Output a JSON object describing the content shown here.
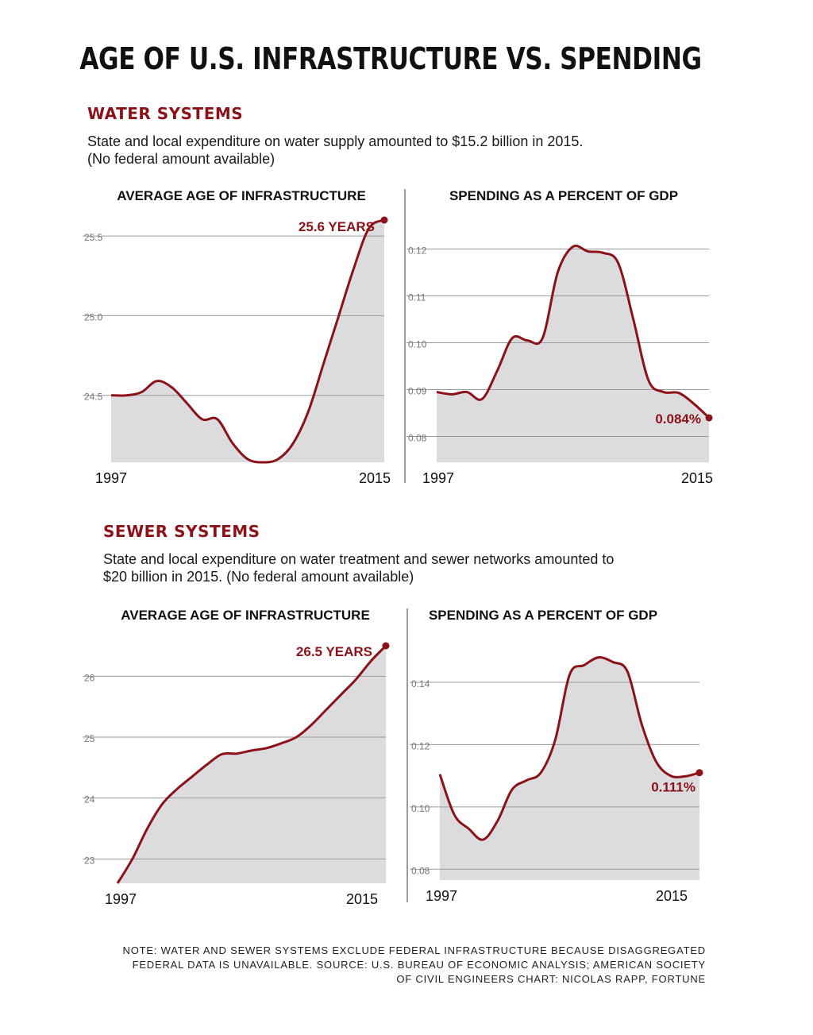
{
  "title": "AGE OF U.S. INFRASTRUCTURE VS. SPENDING",
  "colors": {
    "accent": "#8b1218",
    "area": "#dcdcde",
    "grid": "#9a9a9a",
    "tick": "#777777"
  },
  "water": {
    "heading": "WATER SYSTEMS",
    "desc_line1": "State and local expenditure on water supply amounted to $15.2 billion in 2015.",
    "desc_line2": "(No federal amount available)"
  },
  "sewer": {
    "heading": "SEWER SYSTEMS",
    "desc_line1": "State and local expenditure on water treatment and sewer networks amounted to",
    "desc_line2": "$20 billion in 2015.  (No federal amount available)"
  },
  "note": {
    "line1": "NOTE: WATER AND SEWER SYSTEMS EXCLUDE FEDERAL INFRASTRUCTURE BECAUSE DISAGGREGATED",
    "line2": "FEDERAL DATA IS UNAVAILABLE.  SOURCE: U.S. BUREAU OF ECONOMIC ANALYSIS; AMERICAN SOCIETY",
    "line3": "OF CIVIL ENGINEERS CHART: NICOLAS RAPP, FORTUNE"
  },
  "chart_data": [
    {
      "type": "area",
      "title": "AVERAGE AGE OF INFRASTRUCTURE",
      "section": "WATER SYSTEMS",
      "x": [
        1997,
        1998,
        1999,
        2000,
        2001,
        2002,
        2003,
        2004,
        2005,
        2006,
        2007,
        2008,
        2009,
        2010,
        2011,
        2012,
        2013,
        2014,
        2015
      ],
      "values": [
        24.5,
        24.5,
        24.52,
        24.59,
        24.55,
        24.45,
        24.35,
        24.35,
        24.2,
        24.1,
        24.08,
        24.1,
        24.2,
        24.4,
        24.7,
        25.0,
        25.3,
        25.55,
        25.6
      ],
      "yticks": [
        "24.5",
        "25.0",
        "25.5"
      ],
      "ytick_values": [
        24.5,
        25.0,
        25.5
      ],
      "ylim": [
        24.08,
        25.6
      ],
      "xtick_labels": [
        "1997",
        "2015"
      ],
      "end_label": "25.6 YEARS"
    },
    {
      "type": "area",
      "title": "SPENDING AS A PERCENT OF GDP",
      "section": "WATER SYSTEMS",
      "x": [
        1997,
        1998,
        1999,
        2000,
        2001,
        2002,
        2003,
        2004,
        2005,
        2006,
        2007,
        2008,
        2009,
        2010,
        2011,
        2012,
        2013,
        2014,
        2015
      ],
      "values": [
        0.0895,
        0.089,
        0.0895,
        0.088,
        0.094,
        0.101,
        0.1005,
        0.101,
        0.115,
        0.1205,
        0.1195,
        0.1192,
        0.117,
        0.105,
        0.092,
        0.0895,
        0.0893,
        0.087,
        0.084
      ],
      "yticks": [
        "0.08",
        "0.09",
        "0.10",
        "0.11",
        "0.12"
      ],
      "ytick_values": [
        0.08,
        0.09,
        0.1,
        0.11,
        0.12
      ],
      "ylim": [
        0.0745,
        0.1245
      ],
      "xtick_labels": [
        "1997",
        "2015"
      ],
      "end_label": "0.084%"
    },
    {
      "type": "area",
      "title": "AVERAGE AGE OF INFRASTRUCTURE",
      "section": "SEWER SYSTEMS",
      "x": [
        1997,
        1998,
        1999,
        2000,
        2001,
        2002,
        2003,
        2004,
        2005,
        2006,
        2007,
        2008,
        2009,
        2010,
        2011,
        2012,
        2013,
        2014,
        2015
      ],
      "values": [
        22.6,
        23.0,
        23.5,
        23.9,
        24.15,
        24.35,
        24.55,
        24.72,
        24.73,
        24.78,
        24.82,
        24.9,
        25.0,
        25.2,
        25.45,
        25.7,
        25.95,
        26.25,
        26.5
      ],
      "yticks": [
        "23",
        "24",
        "25",
        "26"
      ],
      "ytick_values": [
        23,
        24,
        25,
        26
      ],
      "ylim": [
        22.6,
        26.5
      ],
      "xtick_labels": [
        "1997",
        "2015"
      ],
      "end_label": "26.5 YEARS"
    },
    {
      "type": "area",
      "title": "SPENDING AS A PERCENT OF GDP",
      "section": "SEWER SYSTEMS",
      "x": [
        1997,
        1998,
        1999,
        2000,
        2001,
        2002,
        2003,
        2004,
        2005,
        2006,
        2007,
        2008,
        2009,
        2010,
        2011,
        2012,
        2013,
        2014,
        2015
      ],
      "values": [
        0.1105,
        0.0975,
        0.093,
        0.0895,
        0.0955,
        0.1055,
        0.1085,
        0.111,
        0.1215,
        0.1425,
        0.1455,
        0.148,
        0.1465,
        0.1435,
        0.1265,
        0.1145,
        0.11,
        0.1098,
        0.111
      ],
      "yticks": [
        "0.08",
        "0.10",
        "0.12",
        "0.14"
      ],
      "ytick_values": [
        0.08,
        0.1,
        0.12,
        0.14
      ],
      "ylim": [
        0.0765,
        0.153
      ],
      "xtick_labels": [
        "1997",
        "2015"
      ],
      "end_label": "0.111%"
    }
  ]
}
